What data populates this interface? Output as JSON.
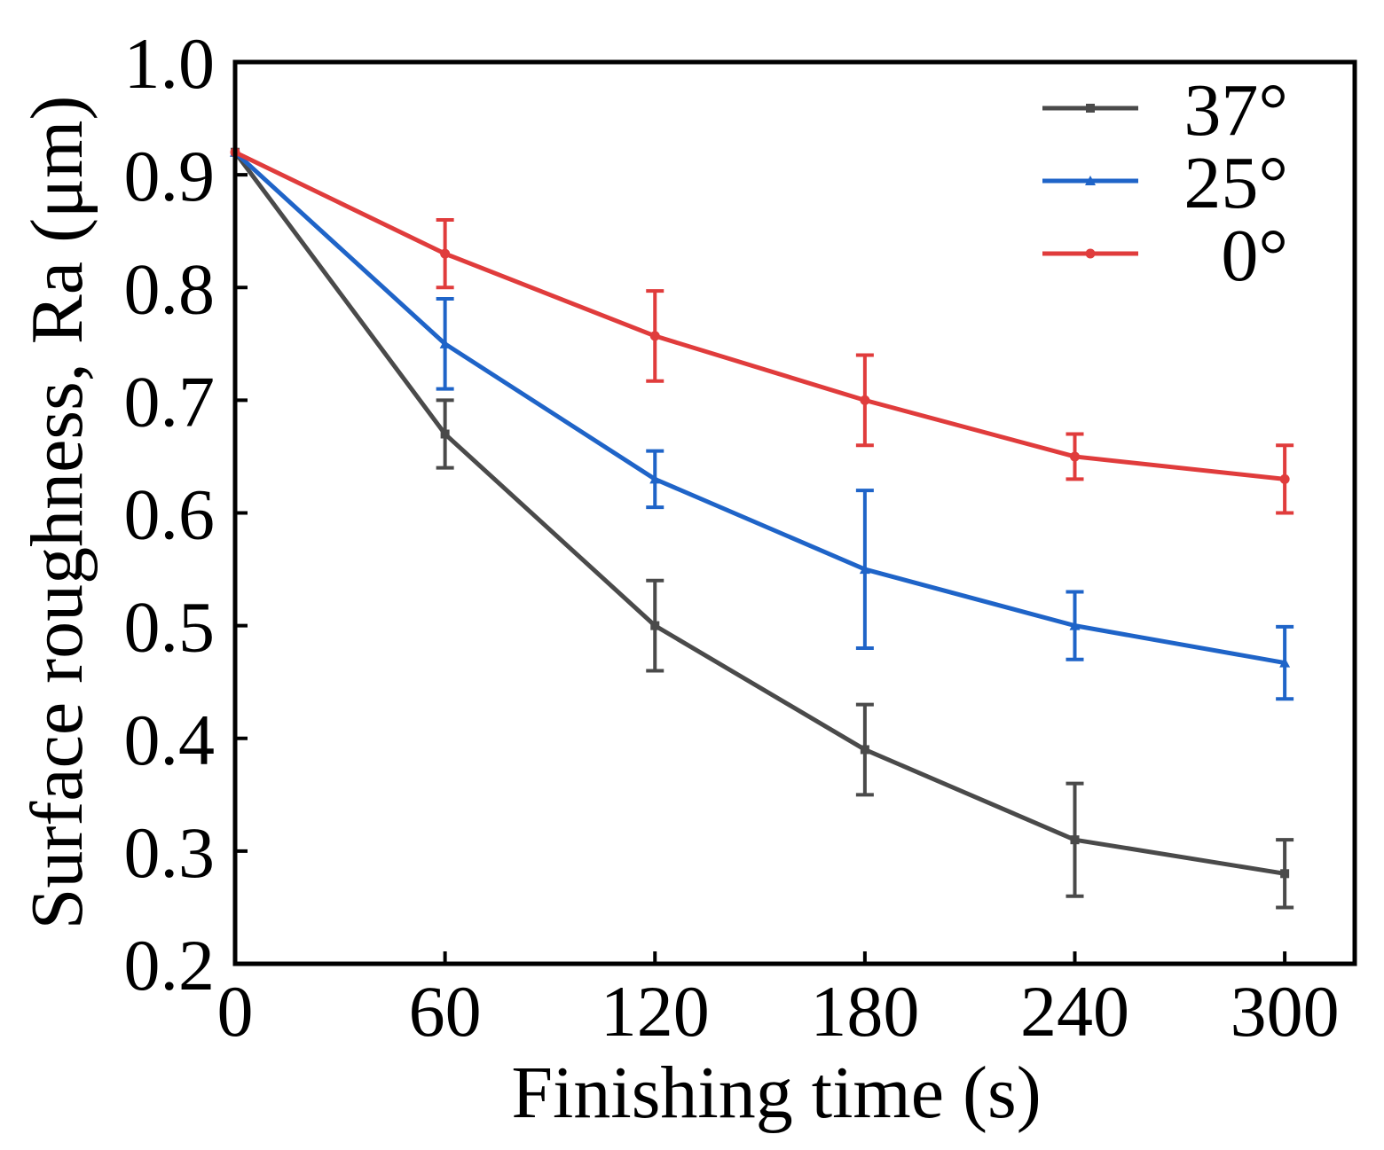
{
  "chart_data": {
    "type": "line",
    "xlabel": "Finishing time (s)",
    "ylabel": "Surface roughness, Ra (μm)",
    "x": [
      0,
      60,
      120,
      180,
      240,
      300
    ],
    "xlim": [
      0,
      320
    ],
    "ylim": [
      0.2,
      1.0
    ],
    "xticks": [
      "0",
      "60",
      "120",
      "180",
      "240",
      "300"
    ],
    "yticks": [
      "0.2",
      "0.3",
      "0.4",
      "0.5",
      "0.6",
      "0.7",
      "0.8",
      "0.9",
      "1.0"
    ],
    "legend_position": "top-right",
    "grid": false,
    "series": [
      {
        "name": "37°",
        "color": "#4a4a4a",
        "marker": "square",
        "values": [
          0.92,
          0.67,
          0.5,
          0.39,
          0.31,
          0.28
        ],
        "errors": [
          0,
          0.03,
          0.04,
          0.04,
          0.05,
          0.03
        ]
      },
      {
        "name": "25°",
        "color": "#1f64c8",
        "marker": "triangle",
        "values": [
          0.92,
          0.75,
          0.63,
          0.55,
          0.5,
          0.467
        ],
        "errors": [
          0,
          0.04,
          0.025,
          0.07,
          0.03,
          0.032
        ]
      },
      {
        "name": "0°",
        "color": "#e03c3c",
        "marker": "circle",
        "values": [
          0.92,
          0.83,
          0.757,
          0.7,
          0.65,
          0.63
        ],
        "errors": [
          0,
          0.03,
          0.04,
          0.04,
          0.02,
          0.03
        ]
      }
    ]
  }
}
